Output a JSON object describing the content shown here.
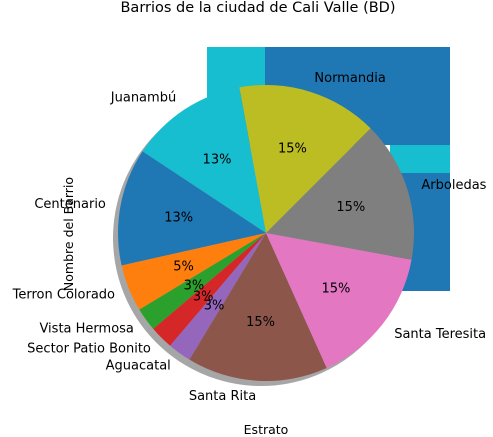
{
  "chart_data": {
    "type": "pie",
    "title": "Barrios de la ciudad de Cali Valle (BD)",
    "xlabel": "Estrato",
    "ylabel": "Nombre del Barrio",
    "legend": "none",
    "start_angle_deg": 45,
    "direction": "counterclockwise",
    "shadow": true,
    "slices": [
      {
        "label": "Normandia",
        "value": 6,
        "pct_label": "15%",
        "color": "#bcbd22"
      },
      {
        "label": "Juanambú",
        "value": 5,
        "pct_label": "13%",
        "color": "#17becf"
      },
      {
        "label": "Centenario",
        "value": 5,
        "pct_label": "13%",
        "color": "#1f77b4"
      },
      {
        "label": "Terron Colorado",
        "value": 2,
        "pct_label": "5%",
        "color": "#ff7f0e"
      },
      {
        "label": "Vista Hermosa",
        "value": 1,
        "pct_label": "3%",
        "color": "#2ca02c"
      },
      {
        "label": "Sector Patio Bonito",
        "value": 1,
        "pct_label": "3%",
        "color": "#d62728"
      },
      {
        "label": "Aguacatal",
        "value": 1,
        "pct_label": "3%",
        "color": "#9467bd"
      },
      {
        "label": "Santa Rita",
        "value": 6,
        "pct_label": "15%",
        "color": "#8c564b"
      },
      {
        "label": "Santa Teresita",
        "value": 6,
        "pct_label": "15%",
        "color": "#e377c2"
      },
      {
        "label": "Arboledas",
        "value": 6,
        "pct_label": "15%",
        "color": "#7f7f7f"
      }
    ]
  }
}
